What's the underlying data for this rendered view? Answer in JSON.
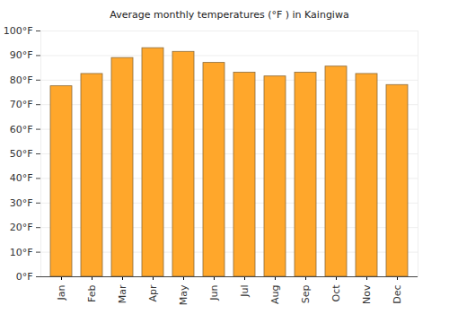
{
  "chart_data": {
    "type": "bar",
    "title": "Average monthly temperatures (°F ) in Kaingiwa",
    "categories": [
      "Jan",
      "Feb",
      "Mar",
      "Apr",
      "May",
      "Jun",
      "Jul",
      "Aug",
      "Sep",
      "Oct",
      "Nov",
      "Dec"
    ],
    "values": [
      77.5,
      82.5,
      89,
      93,
      91.5,
      87,
      83,
      81.5,
      83,
      85.5,
      82.5,
      78
    ],
    "color": "#ffa72b",
    "ylim": [
      0,
      100
    ],
    "yticks": [
      {
        "value": 0,
        "label": "0°F"
      },
      {
        "value": 10,
        "label": "10°F"
      },
      {
        "value": 20,
        "label": "20°F"
      },
      {
        "value": 30,
        "label": "30°F"
      },
      {
        "value": 40,
        "label": "40°F"
      },
      {
        "value": 50,
        "label": "50°F"
      },
      {
        "value": 60,
        "label": "60°F"
      },
      {
        "value": 70,
        "label": "70°F"
      },
      {
        "value": 80,
        "label": "80°F"
      },
      {
        "value": 90,
        "label": "90°F"
      },
      {
        "value": 100,
        "label": "100°F"
      }
    ],
    "grid": true
  }
}
